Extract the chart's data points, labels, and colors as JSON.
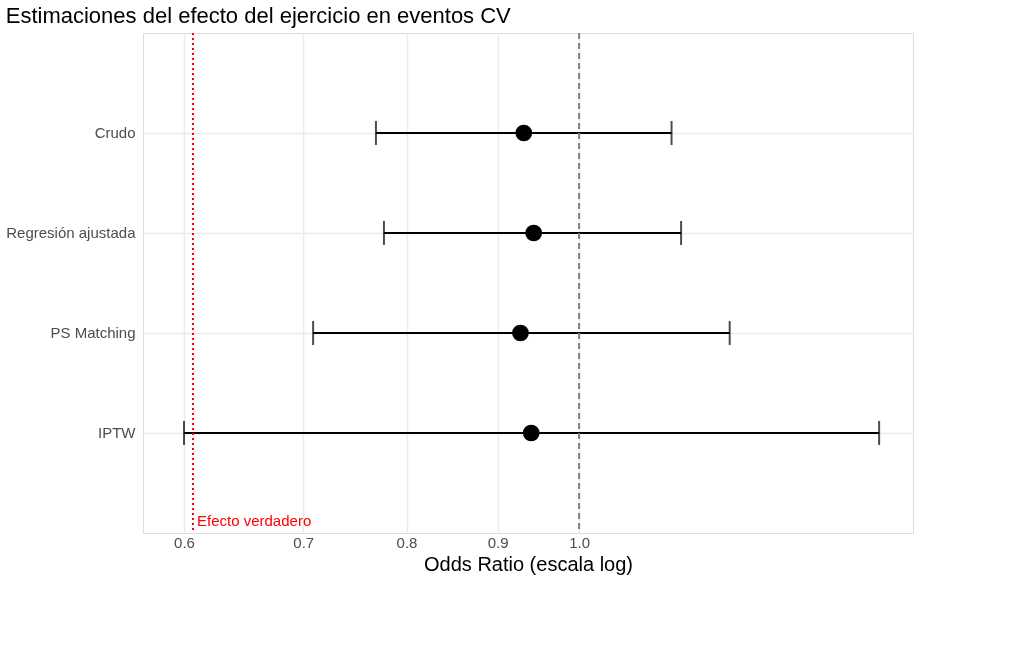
{
  "chart_data": {
    "type": "scatter",
    "orientation": "horizontal",
    "title": "Estimaciones del efecto del ejercicio en eventos CV",
    "xlabel": "Odds Ratio (escala log)",
    "categories": [
      "Crudo",
      "Regresión ajustada",
      "PS Matching",
      "IPTW"
    ],
    "values": [
      0.931,
      0.943,
      0.927,
      0.94
    ],
    "errors": [
      [
        0.769,
        1.127
      ],
      [
        0.777,
        1.141
      ],
      [
        0.709,
        1.215
      ],
      [
        0.6,
        1.474
      ]
    ],
    "color": "#000000",
    "marker": "circle",
    "log": "x",
    "xlim": [
      0.569,
      1.54
    ],
    "xticks": [
      0.6,
      0.7,
      0.8,
      0.9,
      {
        "value": 1,
        "label": "1.0"
      }
    ],
    "grid": true,
    "ref_lines": [
      {
        "axis": "x",
        "value": 1.0,
        "label": null,
        "color": "#808080",
        "line_style": "dashed"
      },
      {
        "axis": "x",
        "value": 0.607,
        "label": "Efecto verdadero",
        "color": "#ff0000",
        "line_style": "dotted"
      }
    ]
  }
}
